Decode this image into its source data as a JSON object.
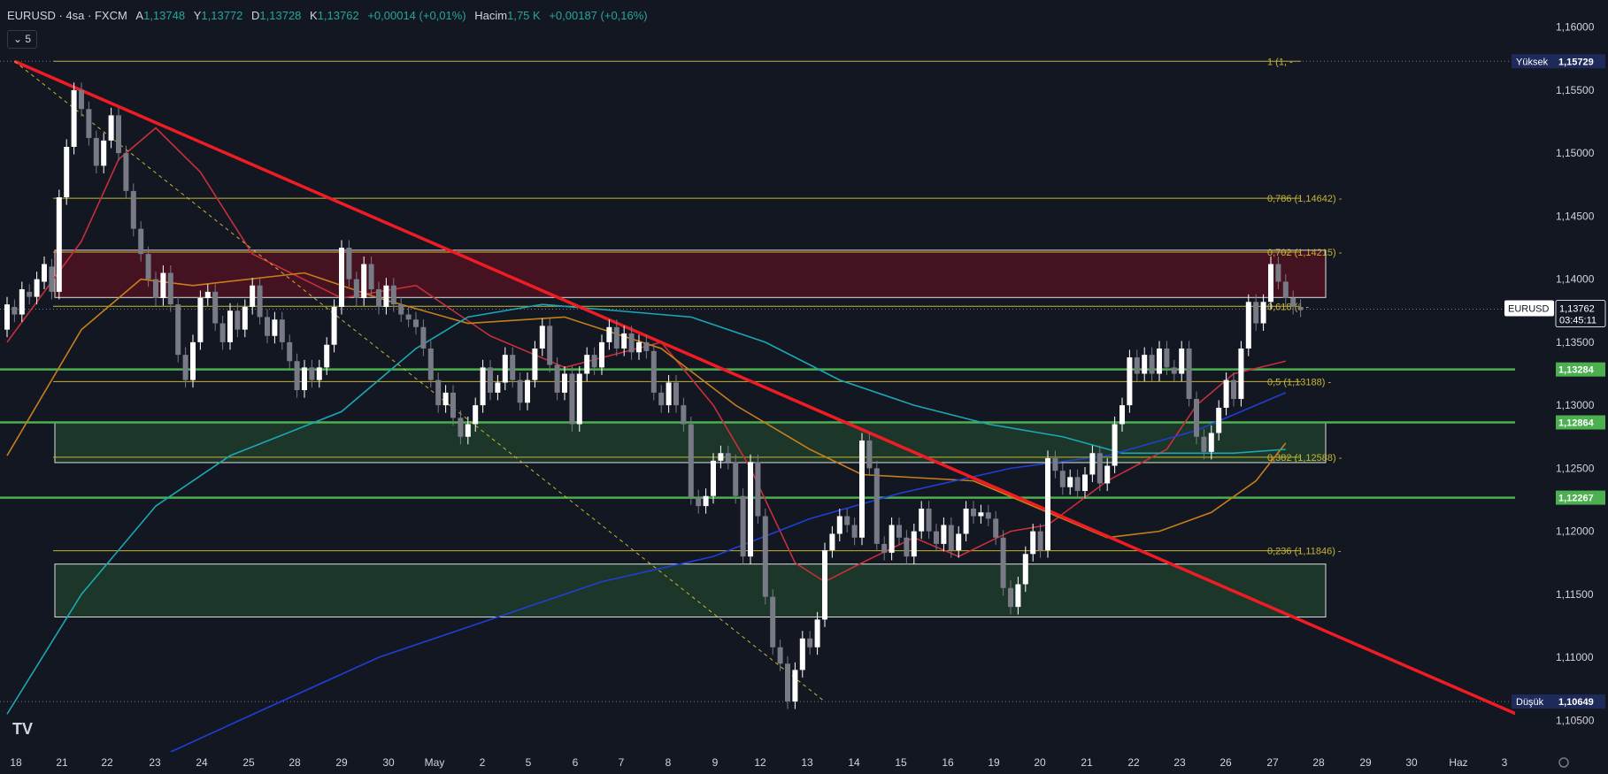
{
  "header": {
    "symbol": "EURUSD · 4sa · FXCM",
    "open_label": "A",
    "open": "1,13748",
    "high_label": "Y",
    "high": "1,13772",
    "low_label": "D",
    "low": "1,13728",
    "close_label": "K",
    "close": "1,13762",
    "change": "+0,00014 (+0,01%)",
    "volume_label": "Hacim",
    "volume": "1,75 K",
    "volume_change": "+0,00187 (+0,16%)"
  },
  "interval_button": {
    "label": "5",
    "icon": "chevron-down-icon"
  },
  "colors": {
    "background": "#131722",
    "up_candle": "#ffffff",
    "down_candle": "#787b86",
    "trendline": "#f01c24",
    "fib_line": "#c6b535",
    "green_line": "#4caf50",
    "ma_red": "#c62f3b",
    "ma_orange": "#c87f1a",
    "ma_teal": "#1aa8b4",
    "ma_blue": "#1f3fd6",
    "resistance_zone": "#4a1220",
    "support_zone": "#1f3a2b"
  },
  "chart_data": {
    "type": "candlestick",
    "symbol": "EURUSD",
    "timeframe": "4sa",
    "ylim": [
      1.1025,
      1.163
    ],
    "y_ticks": [
      "1,16000",
      "1,15500",
      "1,15000",
      "1,14500",
      "1,14000",
      "1,13500",
      "1,13000",
      "1,12500",
      "1,12000",
      "1,11500",
      "1,11000",
      "1,10500"
    ],
    "y_tick_values": [
      1.16,
      1.155,
      1.15,
      1.145,
      1.14,
      1.135,
      1.13,
      1.125,
      1.12,
      1.115,
      1.11,
      1.105
    ],
    "x_ticks": [
      "18",
      "21",
      "22",
      "23",
      "24",
      "25",
      "28",
      "29",
      "30",
      "May",
      "2",
      "5",
      "6",
      "7",
      "8",
      "9",
      "12",
      "13",
      "14",
      "15",
      "16",
      "19",
      "20",
      "21",
      "22",
      "23",
      "26",
      "27",
      "28",
      "29",
      "30",
      "Haz",
      "3"
    ],
    "candles": [
      [
        1.136,
        1.138
      ],
      [
        1.1378,
        1.1372
      ],
      [
        1.1372,
        1.1392
      ],
      [
        1.139,
        1.1386
      ],
      [
        1.1386,
        1.14
      ],
      [
        1.1398,
        1.1412
      ],
      [
        1.141,
        1.139
      ],
      [
        1.139,
        1.1465
      ],
      [
        1.1465,
        1.1505
      ],
      [
        1.1505,
        1.155
      ],
      [
        1.155,
        1.1535
      ],
      [
        1.1535,
        1.1512
      ],
      [
        1.1512,
        1.149
      ],
      [
        1.149,
        1.151
      ],
      [
        1.151,
        1.153
      ],
      [
        1.153,
        1.15
      ],
      [
        1.15,
        1.147
      ],
      [
        1.147,
        1.144
      ],
      [
        1.144,
        1.142
      ],
      [
        1.142,
        1.14
      ],
      [
        1.14,
        1.1385
      ],
      [
        1.1385,
        1.1405
      ],
      [
        1.1405,
        1.138
      ],
      [
        1.138,
        1.134
      ],
      [
        1.134,
        1.132
      ],
      [
        1.132,
        1.135
      ],
      [
        1.135,
        1.1385
      ],
      [
        1.1385,
        1.139
      ],
      [
        1.139,
        1.1365
      ],
      [
        1.1365,
        1.135
      ],
      [
        1.135,
        1.1375
      ],
      [
        1.1375,
        1.136
      ],
      [
        1.136,
        1.1378
      ],
      [
        1.1378,
        1.1395
      ],
      [
        1.1395,
        1.137
      ],
      [
        1.137,
        1.1355
      ],
      [
        1.1355,
        1.1368
      ],
      [
        1.1368,
        1.135
      ],
      [
        1.135,
        1.1335
      ],
      [
        1.1335,
        1.1312
      ],
      [
        1.1312,
        1.133
      ],
      [
        1.133,
        1.132
      ],
      [
        1.132,
        1.133
      ],
      [
        1.133,
        1.1348
      ],
      [
        1.1348,
        1.1378
      ],
      [
        1.1378,
        1.1425
      ],
      [
        1.1425,
        1.14
      ],
      [
        1.14,
        1.1385
      ],
      [
        1.1385,
        1.1412
      ],
      [
        1.1412,
        1.1392
      ],
      [
        1.1392,
        1.1378
      ],
      [
        1.1378,
        1.1395
      ],
      [
        1.1395,
        1.138
      ],
      [
        1.138,
        1.1372
      ],
      [
        1.1372,
        1.1368
      ],
      [
        1.1368,
        1.1362
      ],
      [
        1.1362,
        1.1345
      ],
      [
        1.1345,
        1.132
      ],
      [
        1.132,
        1.13
      ],
      [
        1.13,
        1.131
      ],
      [
        1.131,
        1.129
      ],
      [
        1.129,
        1.1275
      ],
      [
        1.1275,
        1.1285
      ],
      [
        1.1285,
        1.13
      ],
      [
        1.13,
        1.133
      ],
      [
        1.133,
        1.131
      ],
      [
        1.131,
        1.1318
      ],
      [
        1.1318,
        1.134
      ],
      [
        1.134,
        1.132
      ],
      [
        1.132,
        1.1302
      ],
      [
        1.1302,
        1.132
      ],
      [
        1.132,
        1.1345
      ],
      [
        1.1345,
        1.1363
      ],
      [
        1.1363,
        1.1332
      ],
      [
        1.1332,
        1.131
      ],
      [
        1.131,
        1.1325
      ],
      [
        1.1325,
        1.1285
      ],
      [
        1.1285,
        1.1325
      ],
      [
        1.1325,
        1.134
      ],
      [
        1.134,
        1.133
      ],
      [
        1.133,
        1.135
      ],
      [
        1.135,
        1.1362
      ],
      [
        1.1362,
        1.1345
      ],
      [
        1.1345,
        1.1357
      ],
      [
        1.1357,
        1.1342
      ],
      [
        1.1342,
        1.135
      ],
      [
        1.135,
        1.1343
      ],
      [
        1.1343,
        1.131
      ],
      [
        1.131,
        1.13
      ],
      [
        1.13,
        1.1318
      ],
      [
        1.1318,
        1.13
      ],
      [
        1.13,
        1.1285
      ],
      [
        1.1285,
        1.1227
      ],
      [
        1.1227,
        1.122
      ],
      [
        1.122,
        1.1228
      ],
      [
        1.1228,
        1.1256
      ],
      [
        1.1256,
        1.1262
      ],
      [
        1.1262,
        1.1255
      ],
      [
        1.1255,
        1.1228
      ],
      [
        1.1228,
        1.118
      ],
      [
        1.118,
        1.1255
      ],
      [
        1.1255,
        1.1212
      ],
      [
        1.1212,
        1.1148
      ],
      [
        1.1148,
        1.1108
      ],
      [
        1.1108,
        1.1095
      ],
      [
        1.1095,
        1.1065
      ],
      [
        1.1065,
        1.109
      ],
      [
        1.109,
        1.1115
      ],
      [
        1.1115,
        1.1108
      ],
      [
        1.1108,
        1.113
      ],
      [
        1.113,
        1.1185
      ],
      [
        1.1185,
        1.1198
      ],
      [
        1.1198,
        1.1212
      ],
      [
        1.1212,
        1.1205
      ],
      [
        1.1205,
        1.1195
      ],
      [
        1.1195,
        1.1272
      ],
      [
        1.1272,
        1.125
      ],
      [
        1.125,
        1.119
      ],
      [
        1.119,
        1.1183
      ],
      [
        1.1183,
        1.1205
      ],
      [
        1.1205,
        1.1195
      ],
      [
        1.1195,
        1.118
      ],
      [
        1.118,
        1.12
      ],
      [
        1.12,
        1.1218
      ],
      [
        1.1218,
        1.12
      ],
      [
        1.12,
        1.119
      ],
      [
        1.119,
        1.1205
      ],
      [
        1.1205,
        1.1185
      ],
      [
        1.1185,
        1.1198
      ],
      [
        1.1198,
        1.1218
      ],
      [
        1.1218,
        1.1212
      ],
      [
        1.1212,
        1.1215
      ],
      [
        1.1215,
        1.121
      ],
      [
        1.121,
        1.1195
      ],
      [
        1.1195,
        1.1155
      ],
      [
        1.1155,
        1.114
      ],
      [
        1.114,
        1.1158
      ],
      [
        1.1158,
        1.1182
      ],
      [
        1.1182,
        1.12
      ],
      [
        1.12,
        1.1185
      ],
      [
        1.1185,
        1.1258
      ],
      [
        1.1258,
        1.1248
      ],
      [
        1.1248,
        1.1235
      ],
      [
        1.1235,
        1.1243
      ],
      [
        1.1243,
        1.1232
      ],
      [
        1.1232,
        1.1245
      ],
      [
        1.1245,
        1.1262
      ],
      [
        1.1262,
        1.1238
      ],
      [
        1.1238,
        1.1252
      ],
      [
        1.1252,
        1.1285
      ],
      [
        1.1285,
        1.13
      ],
      [
        1.13,
        1.1338
      ],
      [
        1.1338,
        1.1325
      ],
      [
        1.1325,
        1.134
      ],
      [
        1.134,
        1.1325
      ],
      [
        1.1325,
        1.1345
      ],
      [
        1.1345,
        1.133
      ],
      [
        1.133,
        1.1325
      ],
      [
        1.1325,
        1.1345
      ],
      [
        1.1345,
        1.1305
      ],
      [
        1.1305,
        1.1275
      ],
      [
        1.1275,
        1.1263
      ],
      [
        1.1263,
        1.1278
      ],
      [
        1.1278,
        1.1298
      ],
      [
        1.1298,
        1.132
      ],
      [
        1.132,
        1.1305
      ],
      [
        1.1305,
        1.1345
      ],
      [
        1.1345,
        1.1382
      ],
      [
        1.1382,
        1.1365
      ],
      [
        1.1365,
        1.1382
      ],
      [
        1.1382,
        1.1412
      ],
      [
        1.1412,
        1.1398
      ],
      [
        1.1398,
        1.1385
      ],
      [
        1.1385,
        1.1378
      ],
      [
        1.1378,
        1.1376
      ]
    ],
    "first_candle_index": 0,
    "last_candle_index": 167,
    "moving_averages": [
      {
        "color": "#c62f3b",
        "points": [
          [
            0,
            1.135
          ],
          [
            10,
            1.143
          ],
          [
            15,
            1.1495
          ],
          [
            20,
            1.152
          ],
          [
            26,
            1.1485
          ],
          [
            33,
            1.142
          ],
          [
            45,
            1.1385
          ],
          [
            55,
            1.1395
          ],
          [
            65,
            1.1355
          ],
          [
            75,
            1.133
          ],
          [
            88,
            1.135
          ],
          [
            95,
            1.13
          ],
          [
            100,
            1.125
          ],
          [
            106,
            1.1175
          ],
          [
            110,
            1.116
          ],
          [
            115,
            1.1175
          ],
          [
            122,
            1.1195
          ],
          [
            128,
            1.118
          ],
          [
            135,
            1.12
          ],
          [
            140,
            1.1205
          ],
          [
            148,
            1.124
          ],
          [
            156,
            1.1265
          ],
          [
            160,
            1.13
          ],
          [
            165,
            1.1325
          ],
          [
            172,
            1.1335
          ]
        ]
      },
      {
        "color": "#c87f1a",
        "points": [
          [
            0,
            1.126
          ],
          [
            10,
            1.136
          ],
          [
            18,
            1.14
          ],
          [
            25,
            1.1395
          ],
          [
            40,
            1.1405
          ],
          [
            50,
            1.1385
          ],
          [
            62,
            1.1365
          ],
          [
            75,
            1.137
          ],
          [
            88,
            1.1345
          ],
          [
            98,
            1.13
          ],
          [
            108,
            1.1265
          ],
          [
            115,
            1.1245
          ],
          [
            130,
            1.124
          ],
          [
            140,
            1.1215
          ],
          [
            148,
            1.1195
          ],
          [
            155,
            1.12
          ],
          [
            162,
            1.1215
          ],
          [
            168,
            1.124
          ],
          [
            172,
            1.127
          ]
        ]
      },
      {
        "color": "#1aa8b4",
        "points": [
          [
            0,
            1.1055
          ],
          [
            10,
            1.115
          ],
          [
            20,
            1.122
          ],
          [
            30,
            1.126
          ],
          [
            45,
            1.1295
          ],
          [
            55,
            1.1345
          ],
          [
            62,
            1.137
          ],
          [
            72,
            1.138
          ],
          [
            82,
            1.1375
          ],
          [
            92,
            1.137
          ],
          [
            102,
            1.135
          ],
          [
            112,
            1.132
          ],
          [
            122,
            1.13
          ],
          [
            132,
            1.1285
          ],
          [
            142,
            1.1275
          ],
          [
            150,
            1.1262
          ],
          [
            158,
            1.1262
          ],
          [
            165,
            1.1262
          ],
          [
            172,
            1.1265
          ]
        ]
      },
      {
        "color": "#1f3fd6",
        "points": [
          [
            22,
            1.1025
          ],
          [
            35,
            1.106
          ],
          [
            50,
            1.11
          ],
          [
            65,
            1.113
          ],
          [
            80,
            1.116
          ],
          [
            95,
            1.118
          ],
          [
            108,
            1.121
          ],
          [
            120,
            1.123
          ],
          [
            135,
            1.125
          ],
          [
            148,
            1.126
          ],
          [
            160,
            1.128
          ],
          [
            172,
            1.131
          ]
        ]
      }
    ],
    "trendlines": [
      {
        "color": "#f01c24",
        "from": [
          1,
          1.15729
        ],
        "to": [
          205,
          1.105
        ]
      },
      {
        "color": "#c6b535",
        "dashed": true,
        "from": [
          1,
          1.15729
        ],
        "to": [
          110,
          1.10649
        ]
      }
    ],
    "horizontal_levels": [
      {
        "label": "1 (1,",
        "value": 1.15729,
        "kind": "fib"
      },
      {
        "label": "0,786 (1,14642)",
        "value": 1.14642,
        "kind": "fib"
      },
      {
        "label": "0,702 (1,14215)",
        "value": 1.14215,
        "kind": "fib"
      },
      {
        "label": "0,618 (1",
        "value": 1.13785,
        "kind": "fib"
      },
      {
        "label": "0,5 (1,13188)",
        "value": 1.13188,
        "kind": "fib"
      },
      {
        "label": "0,382 (1,12588)",
        "value": 1.12588,
        "kind": "fib"
      },
      {
        "label": "0,236 (1,11846)",
        "value": 1.11846,
        "kind": "fib"
      },
      {
        "label": "",
        "value": 1.13284,
        "kind": "green"
      },
      {
        "label": "",
        "value": 1.12864,
        "kind": "green"
      },
      {
        "label": "",
        "value": 1.12267,
        "kind": "green"
      }
    ],
    "zones": [
      {
        "kind": "resistance",
        "top": 1.1423,
        "bottom": 1.13855
      },
      {
        "kind": "support",
        "top": 1.12864,
        "bottom": 1.12545
      },
      {
        "kind": "support",
        "top": 1.1174,
        "bottom": 1.1132
      }
    ],
    "price_tags": [
      {
        "text": "1,15729",
        "prefix": "Yüksek",
        "value": 1.15729,
        "bg": "#1e2a5a"
      },
      {
        "text": "1,13284",
        "value": 1.13284,
        "bg": "#4caf50"
      },
      {
        "text": "1,12864",
        "value": 1.12864,
        "bg": "#4caf50"
      },
      {
        "text": "1,12267",
        "value": 1.12267,
        "bg": "#4caf50"
      },
      {
        "text": "1,10649",
        "prefix": "Düşük",
        "value": 1.10649,
        "bg": "#1e2a5a"
      }
    ],
    "current_price": {
      "symbol": "EURUSD",
      "price": "1,13762",
      "countdown": "03:45:11",
      "value": 1.13762
    }
  }
}
